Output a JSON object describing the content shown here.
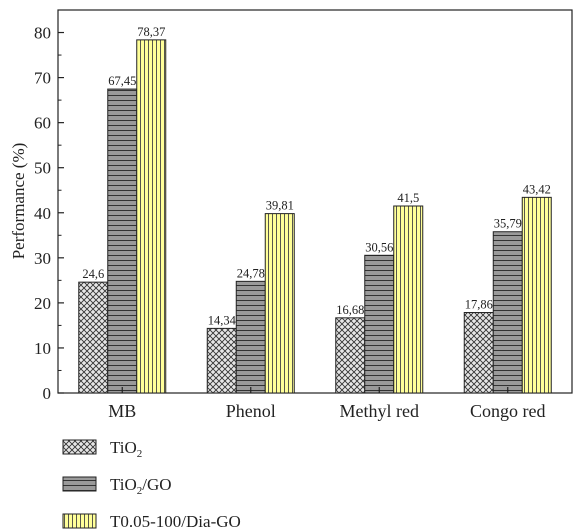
{
  "chart_data": {
    "type": "bar",
    "title": "",
    "xlabel": "",
    "ylabel": "Performance (%)",
    "ylim": [
      0,
      85
    ],
    "yticks": [
      0,
      10,
      20,
      30,
      40,
      50,
      60,
      70,
      80
    ],
    "categories": [
      "MB",
      "Phenol",
      "Methyl red",
      "Congo red"
    ],
    "series": [
      {
        "name": "TiO2",
        "name_main": "TiO",
        "name_sub": "2",
        "name_rest": "",
        "pattern": "crosshatch",
        "fill": "#d9d9d9",
        "values": [
          24.6,
          14.34,
          16.68,
          17.86
        ],
        "labels": [
          "24,6",
          "14,34",
          "16,68",
          "17,86"
        ]
      },
      {
        "name": "TiO2/GO",
        "name_main": "TiO",
        "name_sub": "2",
        "name_rest": "/GO",
        "pattern": "horizontal-lines",
        "fill": "#9a9a9a",
        "values": [
          67.45,
          24.78,
          30.56,
          35.79
        ],
        "labels": [
          "67,45",
          "24,78",
          "30,56",
          "35,79"
        ]
      },
      {
        "name": "T0.05-100/Dia-GO",
        "name_main": "T0.05-100/Dia-GO",
        "name_sub": "",
        "name_rest": "",
        "pattern": "vertical-lines",
        "fill": "#ffff99",
        "values": [
          78.37,
          39.81,
          41.5,
          43.42
        ],
        "labels": [
          "78,37",
          "39,81",
          "41,5",
          "43,42"
        ]
      }
    ],
    "legend_position": "bottom-left",
    "grid": false
  }
}
